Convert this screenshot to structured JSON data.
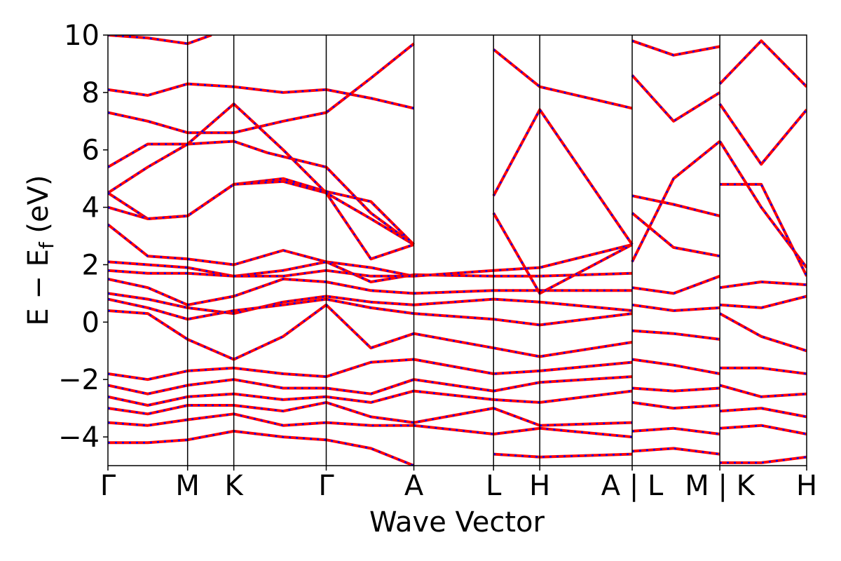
{
  "chart_data": {
    "type": "line",
    "title": "",
    "xlabel": "Wave Vector",
    "ylabel_main": "E − E",
    "ylabel_sub": "f",
    "ylabel_unit": " (eV)",
    "ylim": [
      -5,
      10
    ],
    "yticks": [
      -4,
      -2,
      0,
      2,
      4,
      6,
      8,
      10
    ],
    "ytick_labels": [
      "−4",
      "−2",
      "0",
      "2",
      "4",
      "6",
      "8",
      "10"
    ],
    "xlim": [
      0,
      8.77
    ],
    "kpoints": [
      {
        "label": "Γ",
        "x": 0.0
      },
      {
        "label": "M",
        "x": 1.0
      },
      {
        "label": "K",
        "x": 1.58
      },
      {
        "label": "Γ",
        "x": 2.74
      },
      {
        "label": "A",
        "x": 3.84
      },
      {
        "label": "L",
        "x": 4.84
      },
      {
        "label": "H",
        "x": 5.42
      },
      {
        "label": "A | L",
        "x": 6.58
      },
      {
        "label": "M | K",
        "x": 7.68
      },
      {
        "label": "H",
        "x": 8.77
      }
    ],
    "grid": false,
    "colors": {
      "red": "#ff0000",
      "blue": "#0000ff",
      "axis": "#000000"
    },
    "series": [
      {
        "values": [
          [
            0,
            10.0
          ],
          [
            0.5,
            9.9
          ],
          [
            1.0,
            9.7
          ],
          [
            1.3,
            10.0
          ]
        ]
      },
      {
        "values": [
          [
            0,
            8.1
          ],
          [
            0.5,
            7.9
          ],
          [
            1.0,
            8.3
          ],
          [
            1.58,
            8.2
          ],
          [
            2.2,
            8.0
          ],
          [
            2.74,
            8.1
          ],
          [
            3.3,
            7.8
          ],
          [
            3.84,
            7.45
          ]
        ]
      },
      {
        "values": [
          [
            0,
            7.3
          ],
          [
            0.5,
            7.0
          ],
          [
            1.0,
            6.6
          ],
          [
            1.58,
            6.6
          ],
          [
            2.2,
            7.0
          ],
          [
            2.74,
            7.3
          ],
          [
            3.3,
            8.5
          ],
          [
            3.84,
            9.7
          ]
        ]
      },
      {
        "values": [
          [
            0,
            5.4
          ],
          [
            0.5,
            6.2
          ],
          [
            1.0,
            6.2
          ],
          [
            1.58,
            6.3
          ],
          [
            2.0,
            5.9
          ],
          [
            2.74,
            5.4
          ],
          [
            3.3,
            3.8
          ],
          [
            3.84,
            2.7
          ]
        ]
      },
      {
        "values": [
          [
            0,
            4.5
          ],
          [
            0.5,
            5.4
          ],
          [
            1.0,
            6.2
          ],
          [
            1.58,
            7.6
          ],
          [
            2.2,
            6.0
          ],
          [
            2.74,
            4.5
          ],
          [
            3.3,
            3.6
          ],
          [
            3.84,
            2.7
          ]
        ]
      },
      {
        "values": [
          [
            0,
            4.5
          ],
          [
            0.5,
            3.6
          ],
          [
            1.0,
            3.7
          ],
          [
            1.58,
            4.8
          ],
          [
            2.2,
            5.0
          ],
          [
            2.74,
            4.55
          ],
          [
            3.3,
            4.2
          ],
          [
            3.84,
            2.7
          ]
        ]
      },
      {
        "values": [
          [
            0,
            4.0
          ],
          [
            0.5,
            3.6
          ],
          [
            1.0,
            3.7
          ],
          [
            1.58,
            4.8
          ],
          [
            2.2,
            4.9
          ],
          [
            2.74,
            4.5
          ],
          [
            3.3,
            2.2
          ],
          [
            3.84,
            2.7
          ]
        ]
      },
      {
        "values": [
          [
            0,
            3.4
          ],
          [
            0.5,
            2.3
          ],
          [
            1.0,
            2.2
          ],
          [
            1.58,
            2.0
          ],
          [
            2.2,
            2.5
          ],
          [
            2.74,
            2.1
          ],
          [
            3.3,
            1.9
          ],
          [
            3.84,
            1.6
          ]
        ]
      },
      {
        "values": [
          [
            0,
            2.1
          ],
          [
            0.5,
            2.0
          ],
          [
            1.0,
            1.9
          ],
          [
            1.58,
            1.6
          ],
          [
            2.2,
            1.8
          ],
          [
            2.74,
            2.1
          ],
          [
            3.3,
            1.4
          ],
          [
            3.84,
            1.65
          ],
          [
            4.84,
            1.6
          ],
          [
            5.42,
            1.6
          ],
          [
            6.58,
            1.7
          ]
        ]
      },
      {
        "values": [
          [
            0,
            1.8
          ],
          [
            0.5,
            1.7
          ],
          [
            1.0,
            1.7
          ],
          [
            1.58,
            1.6
          ],
          [
            2.2,
            1.6
          ],
          [
            2.74,
            1.8
          ],
          [
            3.3,
            1.6
          ],
          [
            3.84,
            1.6
          ],
          [
            4.84,
            1.8
          ],
          [
            5.42,
            1.9
          ],
          [
            6.58,
            2.7
          ]
        ]
      },
      {
        "values": [
          [
            0,
            1.5
          ],
          [
            0.5,
            1.2
          ],
          [
            1.0,
            0.6
          ],
          [
            1.58,
            0.9
          ],
          [
            2.2,
            1.5
          ],
          [
            2.74,
            1.4
          ],
          [
            3.3,
            1.1
          ],
          [
            3.84,
            1.0
          ],
          [
            4.84,
            1.1
          ],
          [
            5.42,
            1.1
          ],
          [
            6.58,
            1.1
          ]
        ]
      },
      {
        "values": [
          [
            0,
            1.0
          ],
          [
            0.5,
            0.8
          ],
          [
            1.0,
            0.5
          ],
          [
            1.58,
            0.3
          ],
          [
            2.2,
            0.7
          ],
          [
            2.74,
            0.9
          ],
          [
            3.3,
            0.7
          ],
          [
            3.84,
            0.6
          ],
          [
            4.84,
            0.8
          ],
          [
            5.42,
            0.7
          ],
          [
            6.58,
            0.4
          ]
        ]
      },
      {
        "values": [
          [
            0,
            0.8
          ],
          [
            0.5,
            0.5
          ],
          [
            1.0,
            0.1
          ],
          [
            1.58,
            0.4
          ],
          [
            2.2,
            0.6
          ],
          [
            2.74,
            0.8
          ],
          [
            3.3,
            0.5
          ],
          [
            3.84,
            0.3
          ],
          [
            4.84,
            0.1
          ],
          [
            5.42,
            -0.1
          ],
          [
            6.58,
            0.3
          ]
        ]
      },
      {
        "values": [
          [
            0,
            0.4
          ],
          [
            0.5,
            0.3
          ],
          [
            1.0,
            -0.6
          ],
          [
            1.58,
            -1.3
          ],
          [
            2.2,
            -0.5
          ],
          [
            2.74,
            0.6
          ],
          [
            3.3,
            -0.9
          ],
          [
            3.84,
            -0.4
          ],
          [
            4.84,
            -0.9
          ],
          [
            5.42,
            -1.2
          ],
          [
            6.58,
            -0.7
          ]
        ]
      },
      {
        "values": [
          [
            0,
            -1.8
          ],
          [
            0.5,
            -2.0
          ],
          [
            1.0,
            -1.7
          ],
          [
            1.58,
            -1.6
          ],
          [
            2.2,
            -1.8
          ],
          [
            2.74,
            -1.9
          ],
          [
            3.3,
            -1.4
          ],
          [
            3.84,
            -1.3
          ],
          [
            4.84,
            -1.8
          ],
          [
            5.42,
            -1.7
          ],
          [
            6.58,
            -1.4
          ]
        ]
      },
      {
        "values": [
          [
            0,
            -2.2
          ],
          [
            0.5,
            -2.5
          ],
          [
            1.0,
            -2.2
          ],
          [
            1.58,
            -2.0
          ],
          [
            2.2,
            -2.3
          ],
          [
            2.74,
            -2.3
          ],
          [
            3.3,
            -2.5
          ],
          [
            3.84,
            -2.0
          ],
          [
            4.84,
            -2.4
          ],
          [
            5.42,
            -2.1
          ],
          [
            6.58,
            -1.9
          ]
        ]
      },
      {
        "values": [
          [
            0,
            -2.6
          ],
          [
            0.5,
            -2.9
          ],
          [
            1.0,
            -2.6
          ],
          [
            1.58,
            -2.5
          ],
          [
            2.2,
            -2.7
          ],
          [
            2.74,
            -2.6
          ],
          [
            3.3,
            -2.8
          ],
          [
            3.84,
            -2.4
          ],
          [
            4.84,
            -2.7
          ],
          [
            5.42,
            -2.8
          ],
          [
            6.58,
            -2.4
          ]
        ]
      },
      {
        "values": [
          [
            0,
            -3.0
          ],
          [
            0.5,
            -3.2
          ],
          [
            1.0,
            -2.9
          ],
          [
            1.58,
            -2.9
          ],
          [
            2.2,
            -3.1
          ],
          [
            2.74,
            -2.8
          ],
          [
            3.3,
            -3.3
          ],
          [
            3.84,
            -3.5
          ],
          [
            4.84,
            -3.0
          ],
          [
            5.42,
            -3.6
          ],
          [
            6.58,
            -3.5
          ]
        ]
      },
      {
        "values": [
          [
            0,
            -3.5
          ],
          [
            0.5,
            -3.6
          ],
          [
            1.0,
            -3.4
          ],
          [
            1.58,
            -3.2
          ],
          [
            2.2,
            -3.6
          ],
          [
            2.74,
            -3.5
          ],
          [
            3.3,
            -3.6
          ],
          [
            3.84,
            -3.6
          ],
          [
            4.84,
            -3.9
          ],
          [
            5.42,
            -3.7
          ],
          [
            6.58,
            -4.0
          ]
        ]
      },
      {
        "values": [
          [
            0,
            -4.2
          ],
          [
            0.5,
            -4.2
          ],
          [
            1.0,
            -4.1
          ],
          [
            1.58,
            -3.8
          ],
          [
            2.2,
            -4.0
          ],
          [
            2.74,
            -4.1
          ],
          [
            3.3,
            -4.4
          ],
          [
            3.84,
            -5.0
          ]
        ]
      },
      {
        "values": [
          [
            4.84,
            -4.6
          ],
          [
            5.42,
            -4.7
          ],
          [
            6.58,
            -4.6
          ]
        ]
      },
      {
        "values": [
          [
            4.84,
            4.4
          ],
          [
            5.42,
            7.4
          ],
          [
            6.58,
            2.7
          ]
        ]
      },
      {
        "values": [
          [
            4.84,
            3.8
          ],
          [
            5.42,
            1.0
          ],
          [
            6.58,
            2.7
          ]
        ]
      },
      {
        "values": [
          [
            4.84,
            9.5
          ],
          [
            5.42,
            8.2
          ],
          [
            6.58,
            7.45
          ]
        ]
      },
      {
        "values": [
          [
            6.58,
            4.4
          ],
          [
            7.1,
            4.1
          ],
          [
            7.68,
            3.7
          ]
        ]
      },
      {
        "values": [
          [
            6.58,
            3.8
          ],
          [
            7.1,
            2.6
          ],
          [
            7.68,
            2.3
          ]
        ]
      },
      {
        "values": [
          [
            6.58,
            2.1
          ],
          [
            7.1,
            5.0
          ],
          [
            7.68,
            6.3
          ]
        ]
      },
      {
        "values": [
          [
            6.58,
            1.2
          ],
          [
            7.1,
            1.0
          ],
          [
            7.68,
            1.6
          ]
        ]
      },
      {
        "values": [
          [
            6.58,
            0.6
          ],
          [
            7.1,
            0.4
          ],
          [
            7.68,
            0.5
          ]
        ]
      },
      {
        "values": [
          [
            6.58,
            -0.3
          ],
          [
            7.1,
            -0.4
          ],
          [
            7.68,
            -0.6
          ]
        ]
      },
      {
        "values": [
          [
            6.58,
            -1.3
          ],
          [
            7.1,
            -1.5
          ],
          [
            7.68,
            -1.8
          ]
        ]
      },
      {
        "values": [
          [
            6.58,
            -2.3
          ],
          [
            7.1,
            -2.4
          ],
          [
            7.68,
            -2.3
          ]
        ]
      },
      {
        "values": [
          [
            6.58,
            -2.8
          ],
          [
            7.1,
            -3.0
          ],
          [
            7.68,
            -2.9
          ]
        ]
      },
      {
        "values": [
          [
            6.58,
            -3.8
          ],
          [
            7.1,
            -3.7
          ],
          [
            7.68,
            -3.9
          ]
        ]
      },
      {
        "values": [
          [
            6.58,
            -4.5
          ],
          [
            7.1,
            -4.4
          ],
          [
            7.68,
            -4.6
          ]
        ]
      },
      {
        "values": [
          [
            6.58,
            9.8
          ],
          [
            7.1,
            9.3
          ],
          [
            7.68,
            9.6
          ]
        ]
      },
      {
        "values": [
          [
            6.58,
            8.6
          ],
          [
            7.1,
            7.0
          ],
          [
            7.68,
            8.0
          ]
        ]
      },
      {
        "values": [
          [
            7.68,
            7.6
          ],
          [
            8.2,
            5.5
          ],
          [
            8.77,
            7.4
          ]
        ]
      },
      {
        "values": [
          [
            7.68,
            6.3
          ],
          [
            8.2,
            4.0
          ],
          [
            8.77,
            1.9
          ]
        ]
      },
      {
        "values": [
          [
            7.68,
            4.8
          ],
          [
            8.2,
            4.8
          ],
          [
            8.77,
            1.6
          ]
        ]
      },
      {
        "values": [
          [
            7.68,
            8.3
          ],
          [
            8.2,
            9.8
          ],
          [
            8.77,
            8.2
          ]
        ]
      },
      {
        "values": [
          [
            7.68,
            1.2
          ],
          [
            8.2,
            1.4
          ],
          [
            8.77,
            1.3
          ]
        ]
      },
      {
        "values": [
          [
            7.68,
            0.6
          ],
          [
            8.2,
            0.5
          ],
          [
            8.77,
            0.9
          ]
        ]
      },
      {
        "values": [
          [
            7.68,
            0.3
          ],
          [
            8.2,
            -0.5
          ],
          [
            8.77,
            -1.0
          ]
        ]
      },
      {
        "values": [
          [
            7.68,
            -1.6
          ],
          [
            8.2,
            -1.6
          ],
          [
            8.77,
            -1.8
          ]
        ]
      },
      {
        "values": [
          [
            7.68,
            -2.2
          ],
          [
            8.2,
            -2.6
          ],
          [
            8.77,
            -2.5
          ]
        ]
      },
      {
        "values": [
          [
            7.68,
            -3.1
          ],
          [
            8.2,
            -3.0
          ],
          [
            8.77,
            -3.3
          ]
        ]
      },
      {
        "values": [
          [
            7.68,
            -3.7
          ],
          [
            8.2,
            -3.6
          ],
          [
            8.77,
            -3.9
          ]
        ]
      },
      {
        "values": [
          [
            7.68,
            -4.9
          ],
          [
            8.2,
            -4.9
          ],
          [
            8.77,
            -4.7
          ]
        ]
      }
    ]
  }
}
